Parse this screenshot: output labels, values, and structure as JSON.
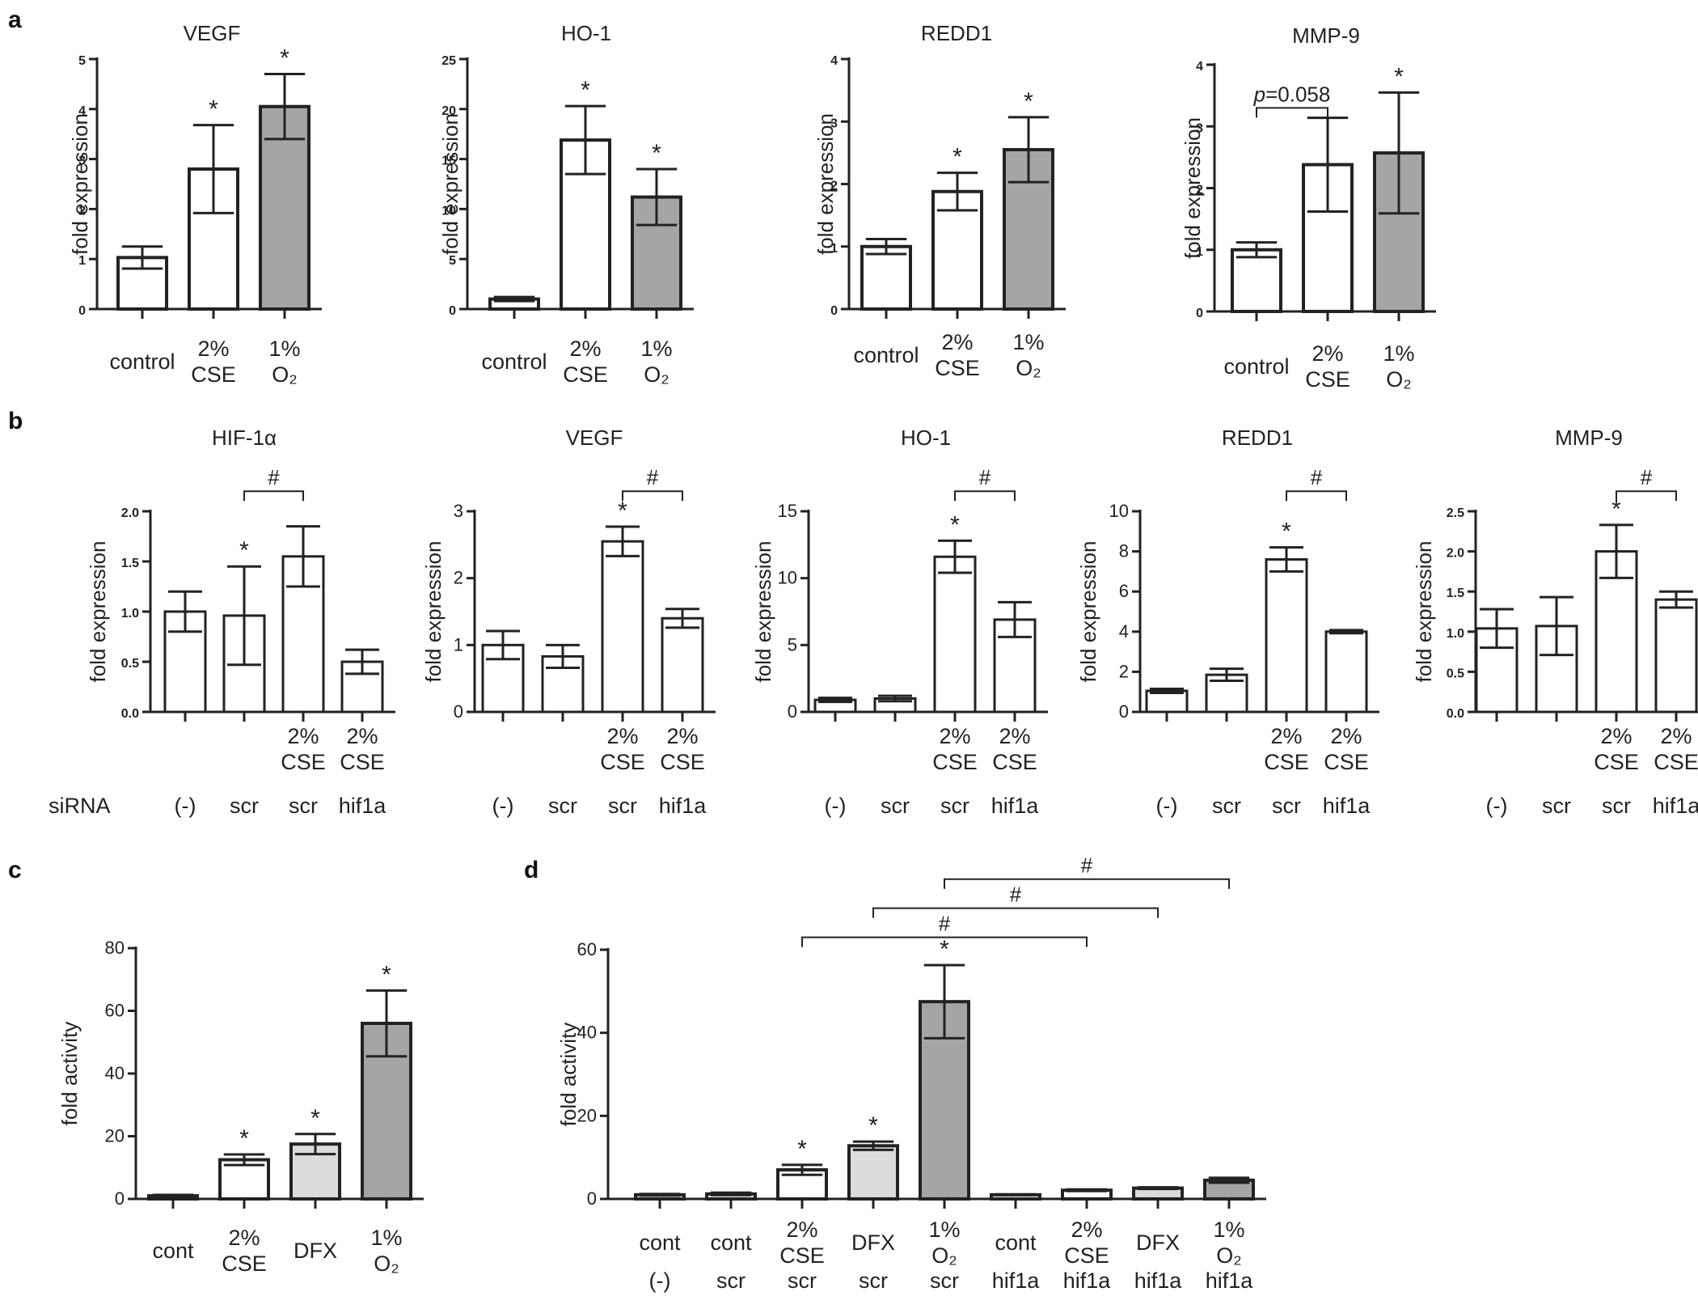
{
  "colors": {
    "white": "#ffffff",
    "light_gray": "#dcdcdc",
    "dark_gray": "#a5a5a8",
    "line": "#222222"
  },
  "chart_data": [
    {
      "id": "a-vegf",
      "panel": "a",
      "type": "bar",
      "title": "VEGF",
      "ylabel": "fold expression",
      "categories": [
        [
          "control"
        ],
        [
          "2%",
          "CSE"
        ],
        [
          "1%",
          "O₂"
        ]
      ],
      "values": [
        1.03,
        2.8,
        4.05
      ],
      "errors": [
        0.22,
        0.88,
        0.65
      ],
      "fills": [
        "white",
        "white",
        "dark_gray"
      ],
      "ylim": [
        0,
        5
      ],
      "yticks": [
        "0",
        "1",
        "2",
        "3",
        "4",
        "5"
      ],
      "stars": [
        false,
        true,
        true
      ],
      "bracket": null
    },
    {
      "id": "a-ho1",
      "panel": "a",
      "type": "bar",
      "title": "HO-1",
      "ylabel": "fold expression",
      "categories": [
        [
          "control"
        ],
        [
          "2%",
          "CSE"
        ],
        [
          "1%",
          "O₂"
        ]
      ],
      "values": [
        1.0,
        16.9,
        11.2
      ],
      "errors": [
        0.2,
        3.4,
        2.8
      ],
      "fills": [
        "white",
        "white",
        "dark_gray"
      ],
      "ylim": [
        0,
        25
      ],
      "yticks": [
        "0",
        "5",
        "10",
        "15",
        "20",
        "25"
      ],
      "stars": [
        false,
        true,
        true
      ],
      "bracket": null
    },
    {
      "id": "a-redd1",
      "panel": "a",
      "type": "bar",
      "title": "REDD1",
      "ylabel": "fold expression",
      "categories": [
        [
          "control"
        ],
        [
          "2%",
          "CSE"
        ],
        [
          "1%",
          "O₂"
        ]
      ],
      "values": [
        1.0,
        1.88,
        2.55
      ],
      "errors": [
        0.12,
        0.3,
        0.52
      ],
      "fills": [
        "white",
        "white",
        "dark_gray"
      ],
      "ylim": [
        0,
        4
      ],
      "yticks": [
        "0",
        "1",
        "2",
        "3",
        "4"
      ],
      "stars": [
        false,
        true,
        true
      ],
      "bracket": null
    },
    {
      "id": "a-mmp9",
      "panel": "a",
      "type": "bar",
      "title": "MMP-9",
      "ylabel": "fold expression",
      "categories": [
        [
          "control"
        ],
        [
          "2%",
          "CSE"
        ],
        [
          "1%",
          "O₂"
        ]
      ],
      "values": [
        1.0,
        2.38,
        2.57
      ],
      "errors": [
        0.12,
        0.76,
        0.98
      ],
      "fills": [
        "white",
        "white",
        "dark_gray"
      ],
      "ylim": [
        0,
        4
      ],
      "yticks": [
        "0",
        "1",
        "2",
        "3",
        "4"
      ],
      "stars": [
        false,
        false,
        true
      ],
      "bracket": {
        "from": 0,
        "to": 1,
        "label_italic": "p",
        "label": "=0.058",
        "y_value": 3.3
      }
    },
    {
      "id": "b-hif1a",
      "panel": "b",
      "type": "bar",
      "title": "HIF-1α",
      "ylabel": "fold expression",
      "categories": [
        [],
        [],
        [
          "2%",
          "CSE"
        ],
        [
          "2%",
          "CSE"
        ]
      ],
      "sirna": [
        "(-)",
        "scr",
        "scr",
        "hif1a"
      ],
      "sirna_label": "siRNA",
      "values": [
        1.0,
        0.96,
        1.55,
        0.5
      ],
      "errors": [
        0.2,
        0.49,
        0.3,
        0.12
      ],
      "fills": [
        "white",
        "white",
        "white",
        "white"
      ],
      "ylim": [
        0,
        2.0
      ],
      "yticks": [
        "0.0",
        "0.5",
        "1.0",
        "1.5",
        "2.0"
      ],
      "stars": [
        false,
        true,
        false,
        false
      ],
      "bracket": {
        "from": 1,
        "to": 2,
        "label": "#",
        "y_value": 2.2
      }
    },
    {
      "id": "b-vegf",
      "panel": "b",
      "type": "bar",
      "title": "VEGF",
      "ylabel": "fold expression",
      "categories": [
        [],
        [],
        [
          "2%",
          "CSE"
        ],
        [
          "2%",
          "CSE"
        ]
      ],
      "sirna": [
        "(-)",
        "scr",
        "scr",
        "hif1a"
      ],
      "values": [
        1.0,
        0.83,
        2.55,
        1.4
      ],
      "errors": [
        0.21,
        0.17,
        0.22,
        0.14
      ],
      "fills": [
        "white",
        "white",
        "white",
        "white"
      ],
      "ylim": [
        0,
        3
      ],
      "yticks": [
        "0",
        "1",
        "2",
        "3"
      ],
      "stars": [
        false,
        false,
        true,
        false
      ],
      "bracket": {
        "from": 2,
        "to": 3,
        "label": "#",
        "y_value": 3.3
      }
    },
    {
      "id": "b-ho1",
      "panel": "b",
      "type": "bar",
      "title": "HO-1",
      "ylabel": "fold expression",
      "categories": [
        [],
        [],
        [
          "2%",
          "CSE"
        ],
        [
          "2%",
          "CSE"
        ]
      ],
      "sirna": [
        "(-)",
        "scr",
        "scr",
        "hif1a"
      ],
      "values": [
        0.9,
        1.0,
        11.6,
        6.9
      ],
      "errors": [
        0.15,
        0.2,
        1.2,
        1.3
      ],
      "fills": [
        "white",
        "white",
        "white",
        "white"
      ],
      "ylim": [
        0,
        15
      ],
      "yticks": [
        "0",
        "5",
        "10",
        "15"
      ],
      "stars": [
        false,
        false,
        true,
        false
      ],
      "bracket": {
        "from": 2,
        "to": 3,
        "label": "#",
        "y_value": 16.5
      }
    },
    {
      "id": "b-redd1",
      "panel": "b",
      "type": "bar",
      "title": "REDD1",
      "ylabel": "fold expression",
      "categories": [
        [],
        [],
        [
          "2%",
          "CSE"
        ],
        [
          "2%",
          "CSE"
        ]
      ],
      "sirna": [
        "(-)",
        "scr",
        "scr",
        "hif1a"
      ],
      "values": [
        1.05,
        1.85,
        7.6,
        4.0
      ],
      "errors": [
        0.1,
        0.3,
        0.6,
        0.08
      ],
      "fills": [
        "white",
        "white",
        "white",
        "white"
      ],
      "ylim": [
        0,
        10
      ],
      "yticks": [
        "0",
        "2",
        "4",
        "6",
        "8",
        "10"
      ],
      "stars": [
        false,
        false,
        true,
        false
      ],
      "bracket": {
        "from": 2,
        "to": 3,
        "label": "#",
        "y_value": 11.0
      }
    },
    {
      "id": "b-mmp9",
      "panel": "b",
      "type": "bar",
      "title": "MMP-9",
      "ylabel": "fold expression",
      "categories": [
        [],
        [],
        [
          "2%",
          "CSE"
        ],
        [
          "2%",
          "CSE"
        ]
      ],
      "sirna": [
        "(-)",
        "scr",
        "scr",
        "hif1a"
      ],
      "values": [
        1.04,
        1.07,
        2.0,
        1.4
      ],
      "errors": [
        0.24,
        0.36,
        0.33,
        0.1
      ],
      "fills": [
        "white",
        "white",
        "white",
        "white"
      ],
      "ylim": [
        0,
        2.5
      ],
      "yticks": [
        "0.0",
        "0.5",
        "1.0",
        "1.5",
        "2.0",
        "2.5"
      ],
      "stars": [
        false,
        false,
        true,
        false
      ],
      "bracket": {
        "from": 2,
        "to": 3,
        "label": "#",
        "y_value": 2.75
      }
    },
    {
      "id": "c",
      "panel": "c",
      "type": "bar",
      "title": "",
      "ylabel": "fold activity",
      "categories": [
        [
          "cont"
        ],
        [
          "2%",
          "CSE"
        ],
        [
          "DFX"
        ],
        [
          "1%",
          "O₂"
        ]
      ],
      "values": [
        1.0,
        12.5,
        17.5,
        56.0
      ],
      "errors": [
        0.3,
        1.7,
        3.2,
        10.5
      ],
      "fills": [
        "white",
        "white",
        "light_gray",
        "dark_gray"
      ],
      "ylim": [
        0,
        80
      ],
      "yticks": [
        "0",
        "20",
        "40",
        "60",
        "80"
      ],
      "stars": [
        false,
        true,
        true,
        true
      ],
      "bracket": null
    },
    {
      "id": "d",
      "panel": "d",
      "type": "bar",
      "title": "",
      "ylabel": "fold activity",
      "categories": [
        [
          "cont"
        ],
        [
          "cont"
        ],
        [
          "2%",
          "CSE"
        ],
        [
          "DFX"
        ],
        [
          "1%",
          "O₂"
        ],
        [
          "cont"
        ],
        [
          "2%",
          "CSE"
        ],
        [
          "DFX"
        ],
        [
          "1%",
          "O₂"
        ]
      ],
      "sirna": [
        "(-)",
        "scr",
        "scr",
        "scr",
        "scr",
        "hif1a",
        "hif1a",
        "hif1a",
        "hif1a"
      ],
      "values": [
        1.0,
        1.2,
        7.0,
        12.8,
        47.5,
        1.0,
        2.1,
        2.6,
        4.5
      ],
      "errors": [
        0.2,
        0.3,
        1.2,
        1.0,
        8.8,
        0.1,
        0.2,
        0.2,
        0.6
      ],
      "fills": [
        "white",
        "white",
        "white",
        "light_gray",
        "dark_gray",
        "white",
        "white",
        "light_gray",
        "dark_gray"
      ],
      "ylim": [
        0,
        60
      ],
      "yticks": [
        "0",
        "20",
        "40",
        "60"
      ],
      "stars": [
        false,
        false,
        true,
        true,
        true,
        false,
        false,
        false,
        false
      ],
      "brackets": [
        {
          "from": 2,
          "to": 6,
          "label": "#",
          "y_value": 63
        },
        {
          "from": 3,
          "to": 7,
          "label": "#",
          "y_value": 70
        },
        {
          "from": 4,
          "to": 8,
          "label": "#",
          "y_value": 77
        }
      ]
    }
  ]
}
